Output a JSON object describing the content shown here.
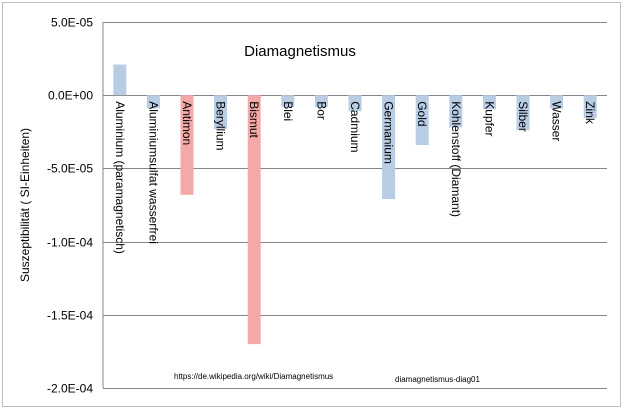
{
  "chart_data": {
    "type": "bar",
    "title": "Diamagnetismus",
    "ylabel": "Suszeptibilität ( SI-Einheiten)",
    "xlabel": "",
    "ylim": [
      -0.0002,
      5e-05
    ],
    "yticks": [
      5e-05,
      0.0,
      -5e-05,
      -0.0001,
      -0.00015,
      -0.0002
    ],
    "ytick_labels": [
      "5.0E-05",
      "0.0E+00",
      "-5.0E-05",
      "-1.0E-04",
      "-1.5E-04",
      "-2.0E-04"
    ],
    "grid": true,
    "categories": [
      "Aluminium (paramagnetisch)",
      "Aluminiumsulfat wasserfrei",
      "Antimon",
      "Beryllium",
      "Bismut",
      "Blei",
      "Bor",
      "Cadmium",
      "Germanium",
      "Gold",
      "Kohlenstoff (Diamant)",
      "Kupfer",
      "Silber",
      "Wasser",
      "Zink"
    ],
    "values": [
      2.1e-05,
      -9e-06,
      -6.8e-05,
      -2.3e-05,
      -0.00017,
      -8e-06,
      -8e-06,
      -1.1e-05,
      -7.1e-05,
      -3.4e-05,
      -2.2e-05,
      -9.6e-06,
      -2.4e-05,
      -9.1e-06,
      -1.57e-05
    ],
    "colors": [
      "#b8cce4",
      "#b8cce4",
      "#f4a9a8",
      "#b8cce4",
      "#f4a9a8",
      "#b8cce4",
      "#b8cce4",
      "#b8cce4",
      "#b8cce4",
      "#b8cce4",
      "#b8cce4",
      "#b8cce4",
      "#b8cce4",
      "#b8cce4",
      "#b8cce4"
    ],
    "annotations": [
      "https://de.wikipedia.org/wiki/Diamagnetismus",
      "diamagnetismus-diag01"
    ]
  }
}
